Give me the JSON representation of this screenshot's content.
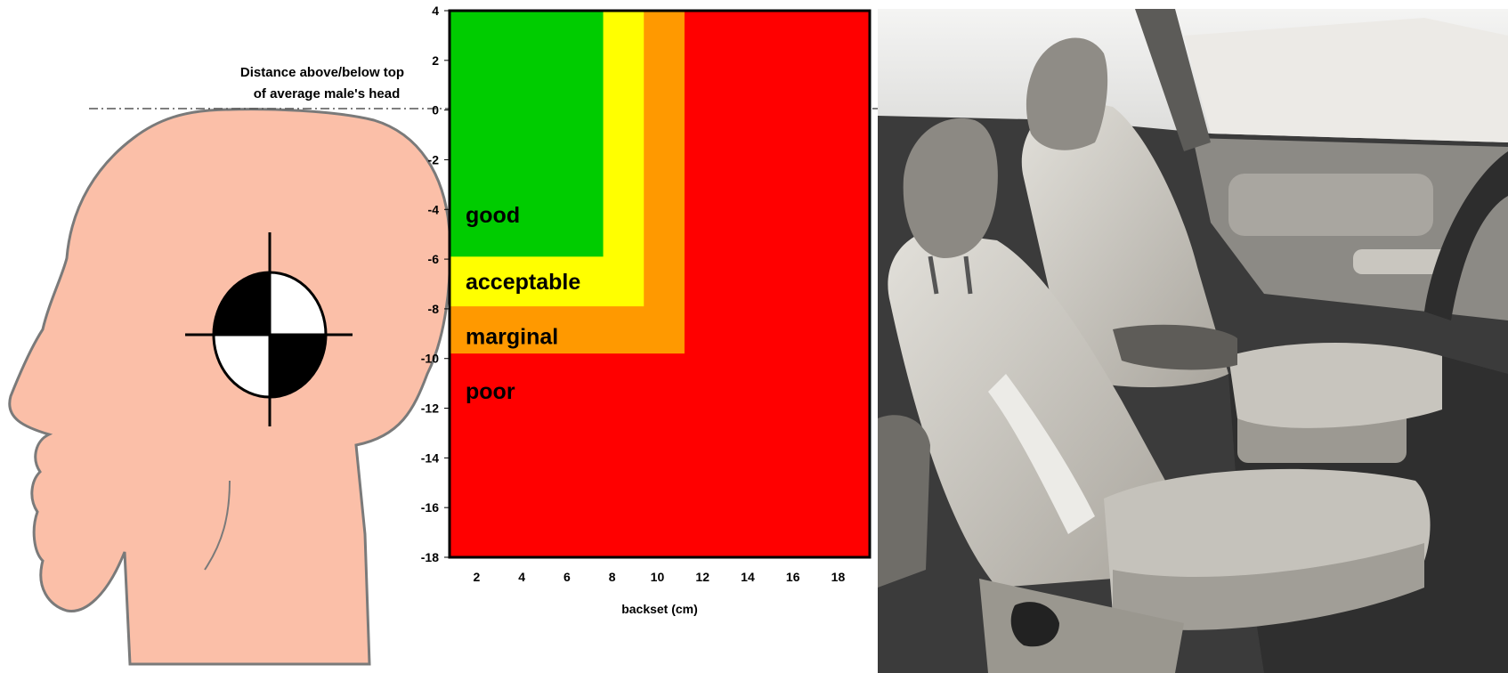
{
  "annotation": {
    "line1": "Distance above/below top",
    "line2": "of average male's head"
  },
  "chart_data": {
    "type": "area",
    "xlabel": "backset (cm)",
    "ylabel": "",
    "xlim": [
      0.8,
      19.4
    ],
    "ylim": [
      -18,
      4
    ],
    "x_ticks": [
      2,
      4,
      6,
      8,
      10,
      12,
      14,
      16,
      18
    ],
    "y_ticks": [
      4,
      2,
      0,
      -2,
      -4,
      -6,
      -8,
      -10,
      -12,
      -14,
      -16,
      -18
    ],
    "zones": [
      {
        "label": "poor",
        "color": "#ff0000",
        "max_backset": 19.4,
        "min_height": -18
      },
      {
        "label": "marginal",
        "color": "#ff9900",
        "max_backset": 11.2,
        "min_height": -9.8
      },
      {
        "label": "acceptable",
        "color": "#ffff00",
        "max_backset": 9.4,
        "min_height": -7.9
      },
      {
        "label": "good",
        "color": "#00cc00",
        "max_backset": 7.6,
        "min_height": -5.9
      }
    ],
    "grid": false,
    "legend": "none"
  },
  "colors": {
    "skin": "#fbbfa8",
    "skin_outline": "#7a7a7a",
    "target_black": "#000000",
    "target_white": "#ffffff",
    "seat_light": "#d8d6d0",
    "seat_mid": "#b9b6ae",
    "seat_dark": "#8b8881",
    "interior_bg": "#3d3d3d",
    "window": "#eeeeec"
  },
  "icons": {
    "head": "head-profile-icon",
    "target": "crash-test-target-icon",
    "seats": "car-seat-photo"
  }
}
